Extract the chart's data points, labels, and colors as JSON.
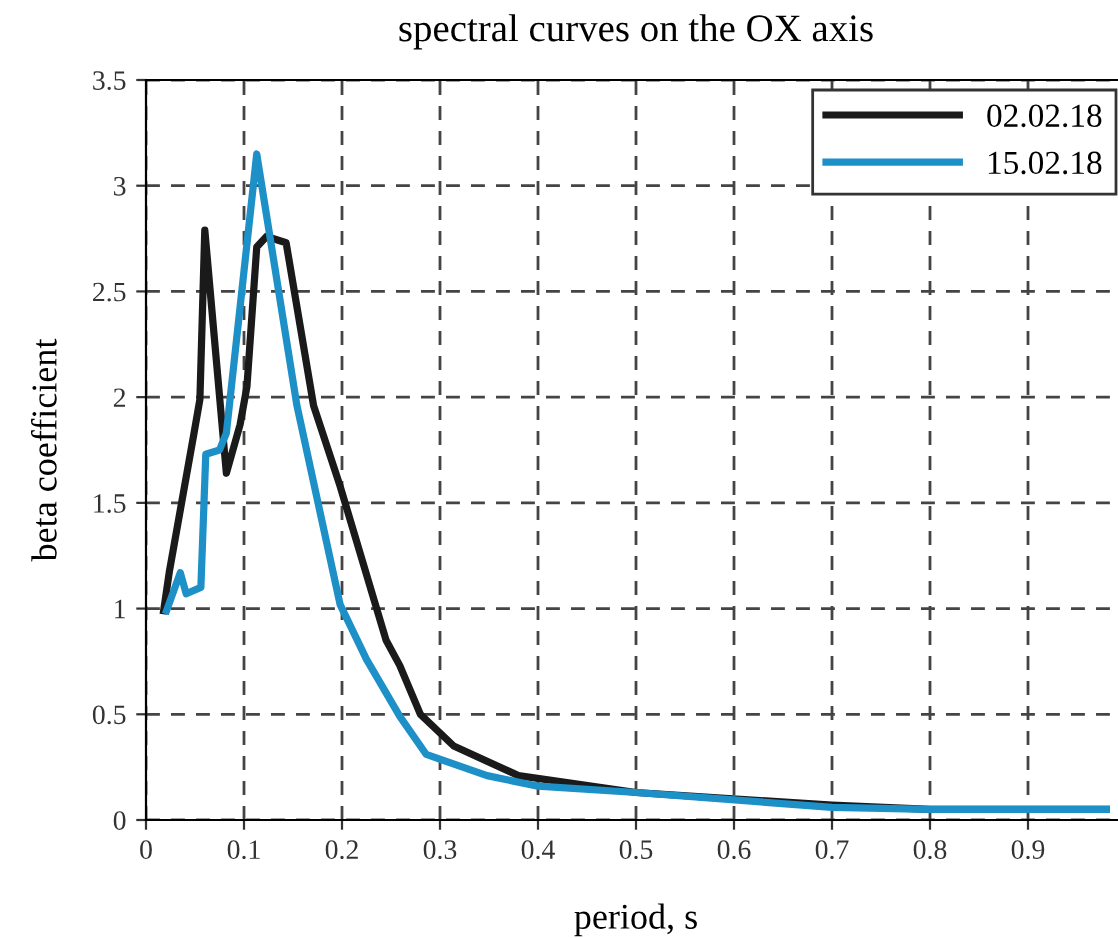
{
  "chart_data": {
    "type": "line",
    "title": "spectral curves on the OX axis",
    "xlabel": "period, s",
    "ylabel": "beta coefficient",
    "xlim": [
      0,
      1
    ],
    "ylim": [
      0,
      3.5
    ],
    "xticks": [
      0,
      0.1,
      0.2,
      0.3,
      0.4,
      0.5,
      0.6,
      0.7,
      0.8,
      0.9,
      {
        "value": 1,
        "label": null
      }
    ],
    "yticks": [
      0,
      0.5,
      1,
      1.5,
      2,
      2.5,
      3,
      3.5
    ],
    "grid": true,
    "legend": "top right",
    "line_style": "solid",
    "marker": "none",
    "series": [
      {
        "name": "02.02.18",
        "color": "#1a1a1a",
        "x": [
          0.018,
          0.024,
          0.049,
          0.055,
          0.06,
          0.082,
          0.096,
          0.103,
          0.113,
          0.123,
          0.143,
          0.171,
          0.198,
          0.245,
          0.259,
          0.28,
          0.314,
          0.38,
          0.5,
          0.7,
          0.8,
          0.98
        ],
        "values": [
          0.99,
          1.18,
          1.83,
          1.99,
          2.79,
          1.64,
          1.87,
          2.05,
          2.71,
          2.76,
          2.73,
          1.96,
          1.58,
          0.85,
          0.73,
          0.5,
          0.35,
          0.21,
          0.13,
          0.07,
          0.05,
          0.05
        ]
      },
      {
        "name": "15.02.18",
        "color": "#1e90c8",
        "x": [
          0.021,
          0.035,
          0.041,
          0.056,
          0.061,
          0.075,
          0.082,
          0.113,
          0.154,
          0.198,
          0.225,
          0.259,
          0.286,
          0.348,
          0.4,
          0.5,
          0.7,
          0.8,
          0.98
        ],
        "values": [
          0.99,
          1.17,
          1.07,
          1.1,
          1.73,
          1.75,
          1.83,
          3.15,
          1.96,
          1.02,
          0.76,
          0.49,
          0.31,
          0.21,
          0.16,
          0.13,
          0.06,
          0.05,
          0.05
        ]
      }
    ]
  }
}
